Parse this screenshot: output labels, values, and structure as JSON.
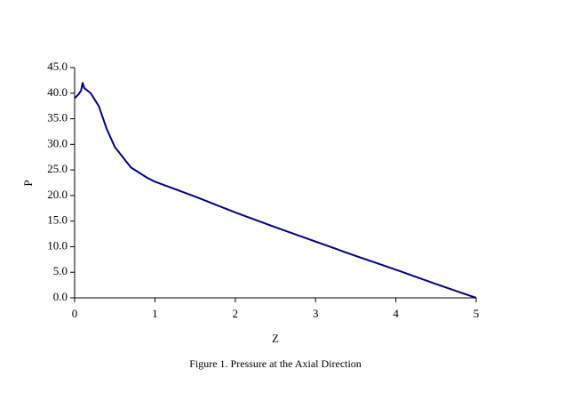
{
  "chart_data": {
    "type": "line",
    "caption": "Figure 1. Pressure at the Axial Direction",
    "x_label": "Z",
    "y_label": "P",
    "x": [
      0,
      0.05,
      0.08,
      0.1,
      0.12,
      0.2,
      0.3,
      0.4,
      0.5,
      0.6,
      0.7,
      0.8,
      0.9,
      1.0,
      1.5,
      2.0,
      2.5,
      3.0,
      3.5,
      4.0,
      4.5,
      5.0
    ],
    "series": [
      {
        "color": "#000080",
        "values": [
          39,
          39.8,
          40.5,
          42,
          41,
          40,
          37.5,
          33,
          29.5,
          27.5,
          25.5,
          24.5,
          23.5,
          22.7,
          19.8,
          16.7,
          13.8,
          11,
          8.2,
          5.5,
          2.7,
          0
        ]
      }
    ],
    "xlim": [
      0,
      5
    ],
    "xticks": [
      0,
      1,
      2,
      3,
      4,
      5
    ],
    "ylim": [
      0,
      45
    ],
    "yticks": [
      {
        "value": 0,
        "label": "0.0"
      },
      {
        "value": 5,
        "label": "5.0"
      },
      {
        "value": 10,
        "label": "10.0"
      },
      {
        "value": 15,
        "label": "15.0"
      },
      {
        "value": 20,
        "label": "20.0"
      },
      {
        "value": 25,
        "label": "25.0"
      },
      {
        "value": 30,
        "label": "30.0"
      },
      {
        "value": 35,
        "label": "35.0"
      },
      {
        "value": 40,
        "label": "40.0"
      },
      {
        "value": 45,
        "label": "45.0"
      }
    ],
    "grid": false
  }
}
